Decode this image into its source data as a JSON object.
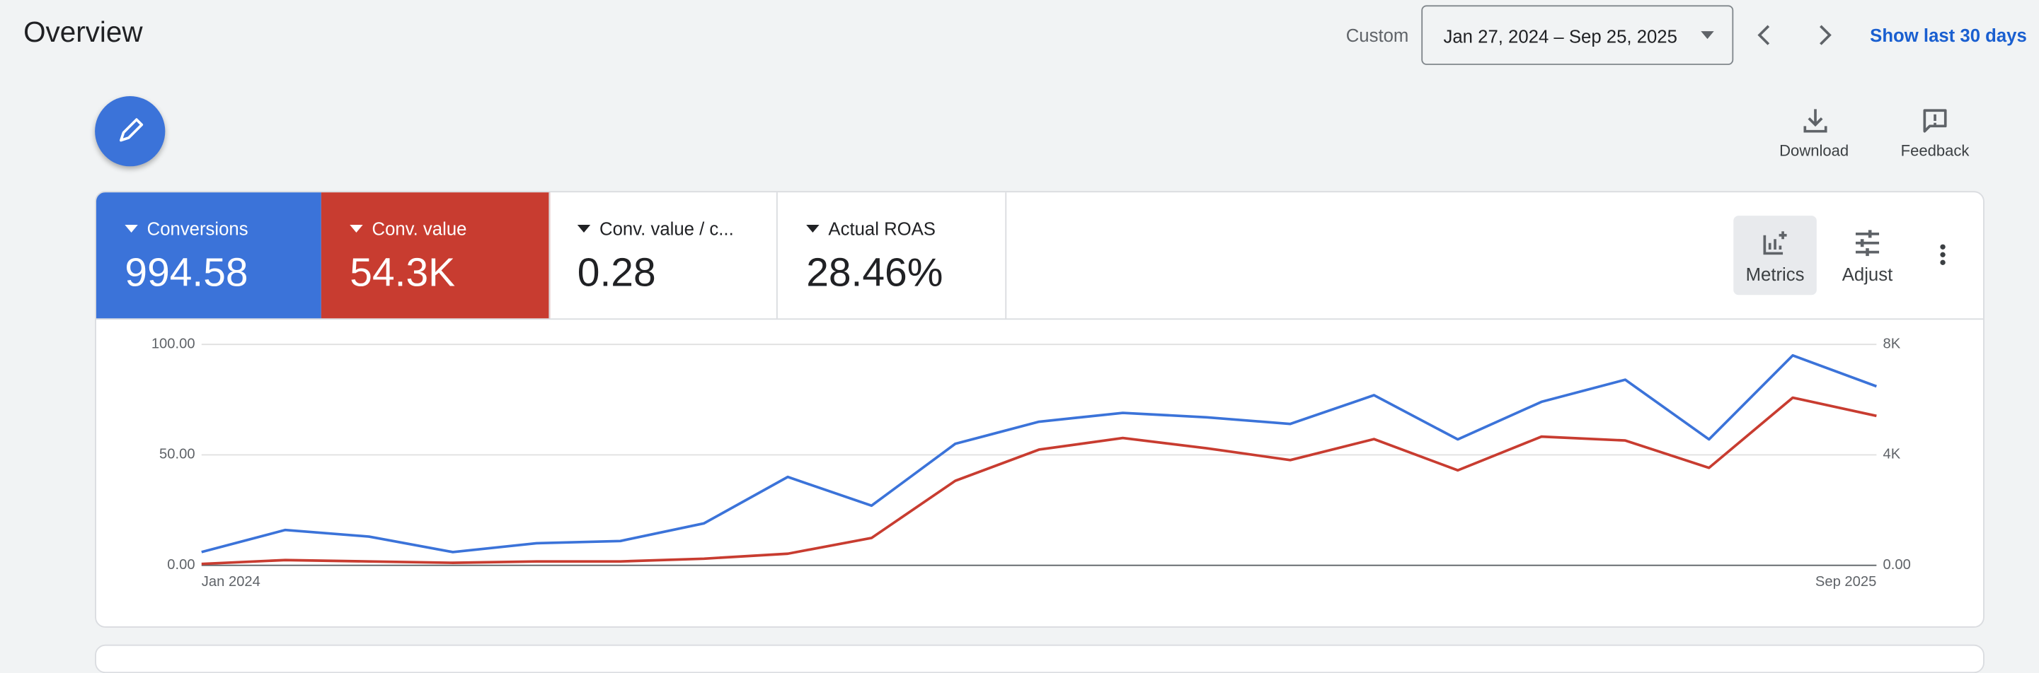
{
  "header": {
    "title": "Overview",
    "range_label": "Custom",
    "date_range": "Jan 27, 2024 – Sep 25, 2025",
    "quick_range": "Show last 30 days"
  },
  "toolbar": {
    "download": "Download",
    "feedback": "Feedback"
  },
  "scorecards": [
    {
      "value": "994.58"
    },
    {
      "value": "54.3K"
    },
    {
      "label": "Conv. value / c...",
      "value": "0.28"
    },
    {
      "label": "Actual ROAS",
      "value": "28.46%"
    }
  ],
  "chart_controls": {
    "metrics": "Metrics",
    "adjust": "Adjust"
  },
  "chart_data": {
    "type": "line",
    "categories": [
      "Jan 2024",
      null,
      null,
      null,
      null,
      null,
      null,
      null,
      null,
      null,
      null,
      null,
      null,
      null,
      null,
      null,
      null,
      null,
      null,
      null,
      "Sep 2025"
    ],
    "series": [
      {
        "name": "Conversions",
        "color": "#3b73d9",
        "values": [
          6,
          16,
          13,
          6,
          10,
          11,
          19,
          40,
          27,
          55,
          65,
          69,
          67,
          64,
          77,
          57,
          74,
          84,
          57,
          95,
          81
        ]
      },
      {
        "name": "Conv. value",
        "color": "#c83c30",
        "axis": "y2",
        "values": [
          50,
          190,
          140,
          90,
          140,
          140,
          240,
          420,
          990,
          3060,
          4190,
          4610,
          4240,
          3810,
          4570,
          3440,
          4660,
          4520,
          3530,
          6070,
          5410
        ]
      }
    ],
    "ylim": [
      0,
      100
    ],
    "yticks": [
      {
        "value": 0,
        "label": "0.00"
      },
      {
        "value": 50,
        "label": "50.00"
      },
      {
        "value": 100,
        "label": "100.00"
      }
    ],
    "y2lim": [
      0,
      8000
    ],
    "y2ticks": [
      {
        "value": 0,
        "label": "0.00"
      },
      {
        "value": 4000,
        "label": "4K"
      },
      {
        "value": 8000,
        "label": "8K"
      }
    ],
    "grid": true
  }
}
